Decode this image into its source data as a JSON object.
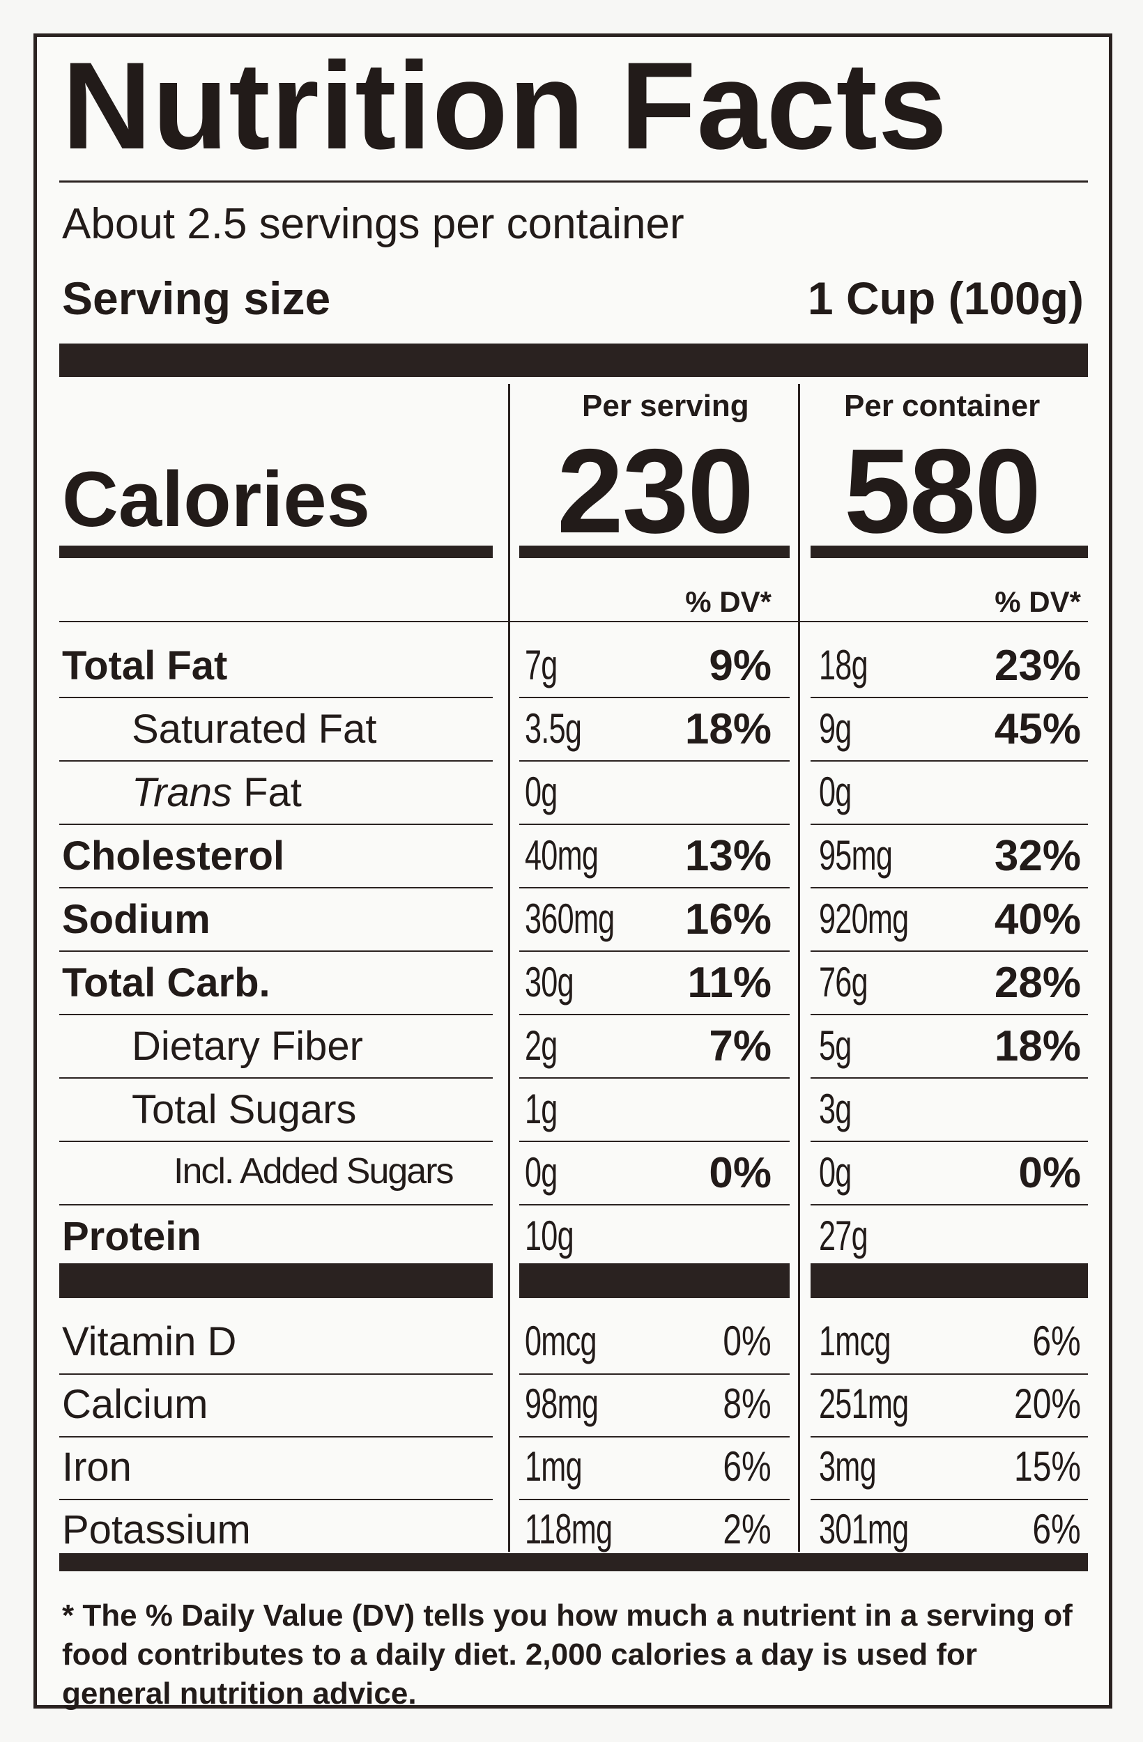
{
  "title": "Nutrition Facts",
  "servings_per_container": "About 2.5 servings per container",
  "serving_size": {
    "label": "Serving size",
    "value": "1 Cup (100g)"
  },
  "columns": {
    "per_serving": "Per serving",
    "per_container": "Per container",
    "dv_header": "% DV*"
  },
  "calories": {
    "label": "Calories",
    "per_serving": "230",
    "per_container": "580"
  },
  "nutrients": [
    {
      "name": "Total Fat",
      "serving_amount": "7g",
      "serving_dv": "9%",
      "container_amount": "18g",
      "container_dv": "23%"
    },
    {
      "name": "Saturated Fat",
      "serving_amount": "3.5g",
      "serving_dv": "18%",
      "container_amount": "9g",
      "container_dv": "45%"
    },
    {
      "name_italic": "Trans",
      "name": "Fat",
      "serving_amount": "0g",
      "serving_dv": "",
      "container_amount": "0g",
      "container_dv": ""
    },
    {
      "name": "Cholesterol",
      "serving_amount": "40mg",
      "serving_dv": "13%",
      "container_amount": "95mg",
      "container_dv": "32%"
    },
    {
      "name": "Sodium",
      "serving_amount": "360mg",
      "serving_dv": "16%",
      "container_amount": "920mg",
      "container_dv": "40%"
    },
    {
      "name": "Total Carb.",
      "serving_amount": "30g",
      "serving_dv": "11%",
      "container_amount": "76g",
      "container_dv": "28%"
    },
    {
      "name": "Dietary Fiber",
      "serving_amount": "2g",
      "serving_dv": "7%",
      "container_amount": "5g",
      "container_dv": "18%"
    },
    {
      "name": "Total Sugars",
      "serving_amount": "1g",
      "serving_dv": "",
      "container_amount": "3g",
      "container_dv": ""
    },
    {
      "name": "Incl. Added Sugars",
      "serving_amount": "0g",
      "serving_dv": "0%",
      "container_amount": "0g",
      "container_dv": "0%"
    },
    {
      "name": "Protein",
      "serving_amount": "10g",
      "serving_dv": "",
      "container_amount": "27g",
      "container_dv": ""
    }
  ],
  "vitamins": [
    {
      "name": "Vitamin D",
      "serving_amount": "0mcg",
      "serving_dv": "0%",
      "container_amount": "1mcg",
      "container_dv": "6%"
    },
    {
      "name": "Calcium",
      "serving_amount": "98mg",
      "serving_dv": "8%",
      "container_amount": "251mg",
      "container_dv": "20%"
    },
    {
      "name": "Iron",
      "serving_amount": "1mg",
      "serving_dv": "6%",
      "container_amount": "3mg",
      "container_dv": "15%"
    },
    {
      "name": "Potassium",
      "serving_amount": "118mg",
      "serving_dv": "2%",
      "container_amount": "301mg",
      "container_dv": "6%"
    }
  ],
  "footnote": "* The % Daily Value (DV) tells you how much a nutrient in a serving of food contributes to a daily diet. 2,000 calories a day is used for general nutrition advice."
}
